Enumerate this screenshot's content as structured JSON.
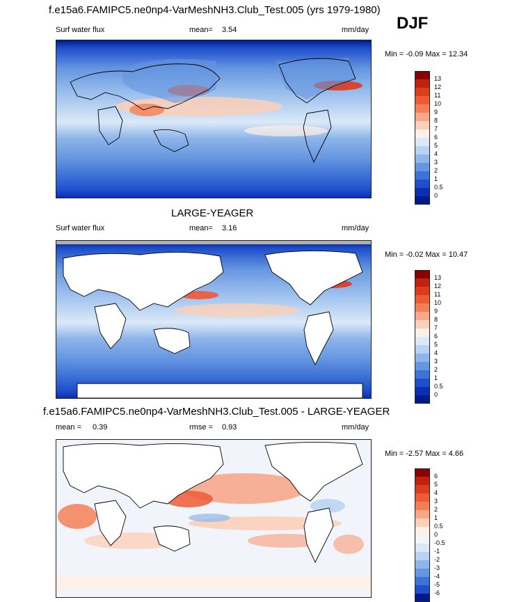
{
  "header": {
    "main_title": "f.e15a6.FAMIPC5.ne0np4-VarMeshNH3.Club_Test.005 (yrs 1979-1980)",
    "season": "DJF"
  },
  "panels": [
    {
      "id": "model",
      "title": "",
      "variable": "Surf water flux",
      "stat_label": "mean=",
      "stat_value": "3.54",
      "units": "mm/day",
      "minmax": "Min =  -0.09 Max =  12.34",
      "land_masked": false,
      "colorbar_labels": [
        "13",
        "12",
        "11",
        "10",
        "9",
        "8",
        "7",
        "6",
        "5",
        "4",
        "3",
        "2",
        "1",
        "0.5",
        "0"
      ]
    },
    {
      "id": "obs",
      "title": "LARGE-YEAGER",
      "variable": "Surf water flux",
      "stat_label": "mean=",
      "stat_value": "3.16",
      "units": "mm/day",
      "minmax": "Min =  -0.02 Max =  10.47",
      "land_masked": true,
      "colorbar_labels": [
        "13",
        "12",
        "11",
        "10",
        "9",
        "8",
        "7",
        "6",
        "5",
        "4",
        "3",
        "2",
        "1",
        "0.5",
        "0"
      ]
    },
    {
      "id": "diff",
      "title": "f.e15a6.FAMIPC5.ne0np4-VarMeshNH3.Club_Test.005 - LARGE-YEAGER",
      "mean_label": "mean =",
      "mean_value": "0.39",
      "rmse_label": "rmse =",
      "rmse_value": "0.93",
      "units": "mm/day",
      "minmax": "Min =  -2.57 Max =   4.66",
      "land_masked": true,
      "colorbar_labels": [
        "6",
        "5",
        "4",
        "3",
        "2",
        "1",
        "0.5",
        "0",
        "-0.5",
        "-1",
        "-2",
        "-3",
        "-4",
        "-5",
        "-6"
      ]
    }
  ],
  "colors": {
    "abs_scale": [
      "#8b0000",
      "#c1220f",
      "#dc3b1c",
      "#ef5a36",
      "#f47f56",
      "#f7a88a",
      "#fbd0b9",
      "#fdf0e6",
      "#dbe9f7",
      "#b7d2f2",
      "#8fb6ea",
      "#6596e0",
      "#3d72d6",
      "#1f4fcc",
      "#0b2fb4",
      "#001a8c"
    ],
    "diff_scale": [
      "#8b0000",
      "#c1220f",
      "#dc3b1c",
      "#ef5a36",
      "#f47f56",
      "#f7a88a",
      "#fbd0b9",
      "#fdf0e6",
      "#f2f4fb",
      "#dbe9f7",
      "#b7d2f2",
      "#8fb6ea",
      "#6596e0",
      "#3d72d6",
      "#1f4fcc",
      "#001a8c"
    ],
    "land": "#ffffff",
    "coast": "#000000"
  }
}
